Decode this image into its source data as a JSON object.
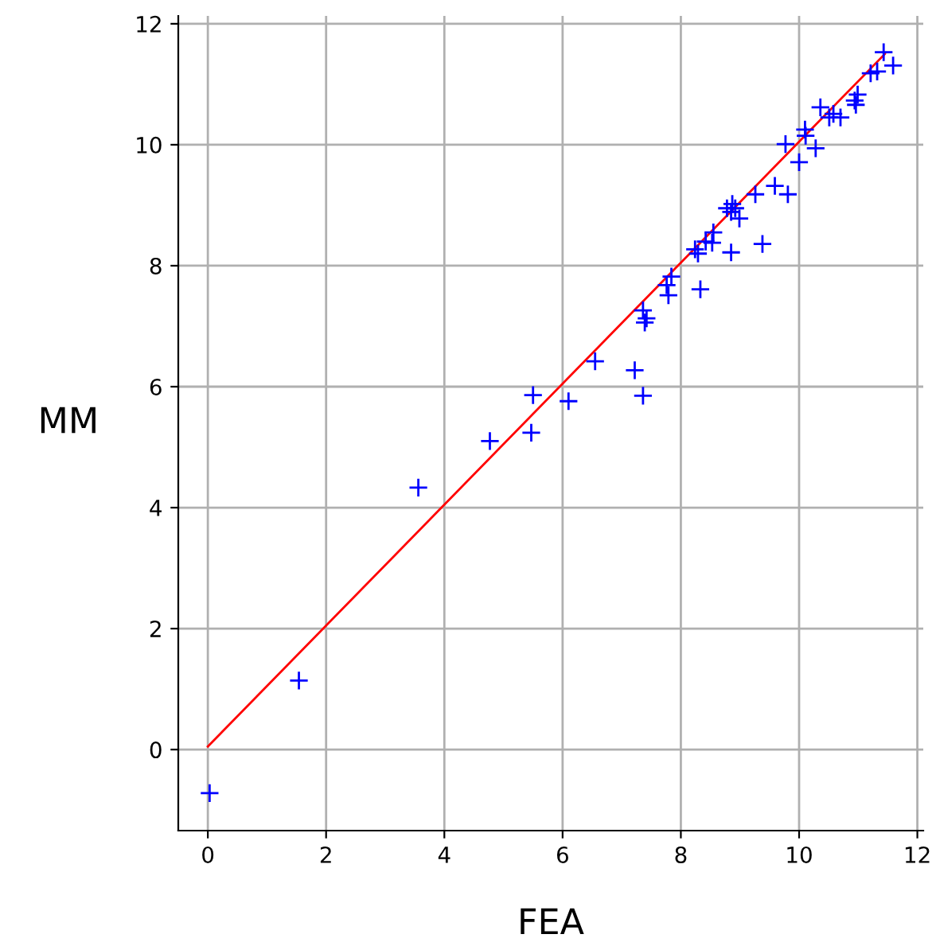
{
  "chart_data": {
    "type": "scatter",
    "xlabel": "FEA",
    "ylabel": "MM",
    "xlim": [
      -0.5,
      12.1
    ],
    "ylim": [
      -1.34,
      12.13
    ],
    "xticks": [
      0,
      2,
      4,
      6,
      8,
      10,
      12
    ],
    "yticks": [
      0,
      2,
      4,
      6,
      8,
      10,
      12
    ],
    "grid": true,
    "marker": "cross",
    "series": [
      {
        "color": "#0000ff",
        "x": [
          0.03,
          1.54,
          3.56,
          4.77,
          5.5,
          5.47,
          6.1,
          6.55,
          7.22,
          7.36,
          7.39,
          7.42,
          7.36,
          7.76,
          7.79,
          7.84,
          8.33,
          8.24,
          8.29,
          8.42,
          8.55,
          8.53,
          8.85,
          9.38,
          8.78,
          8.87,
          8.92,
          8.85,
          8.99,
          9.26,
          9.59,
          9.81,
          9.77,
          10.0,
          10.1,
          10.11,
          10.28,
          10.36,
          10.51,
          10.58,
          10.7,
          10.94,
          10.99,
          10.96,
          11.21,
          11.32,
          11.43,
          11.59
        ],
        "values": [
          -0.72,
          1.14,
          4.33,
          5.1,
          5.86,
          5.24,
          5.76,
          6.42,
          6.27,
          5.85,
          7.06,
          7.13,
          7.26,
          7.68,
          7.51,
          7.82,
          7.61,
          8.27,
          8.2,
          8.4,
          8.55,
          8.38,
          8.22,
          8.36,
          8.95,
          9.02,
          8.95,
          8.89,
          8.78,
          9.18,
          9.32,
          9.18,
          10.01,
          9.71,
          10.25,
          10.15,
          9.94,
          10.62,
          10.45,
          10.51,
          10.45,
          10.73,
          10.83,
          10.66,
          11.18,
          11.21,
          11.53,
          11.31
        ]
      },
      {
        "type": "line",
        "color": "#ff0000",
        "marker": "none",
        "x": [
          0.0,
          11.45
        ],
        "values": [
          0.05,
          11.5
        ]
      }
    ]
  }
}
